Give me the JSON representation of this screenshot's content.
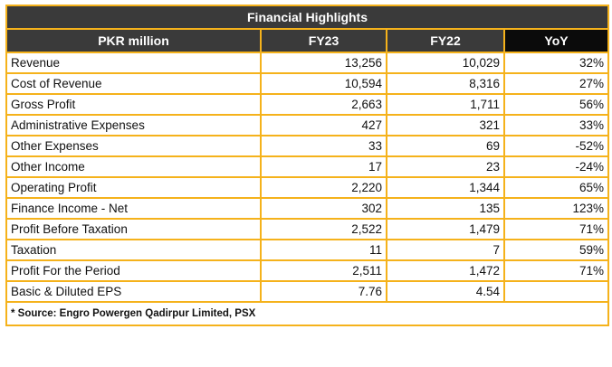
{
  "table": {
    "title": "Financial Highlights",
    "headers": [
      "PKR million",
      "FY23",
      "FY22",
      "YoY"
    ],
    "rows": [
      {
        "label": "Revenue",
        "fy23": "13,256",
        "fy22": "10,029",
        "yoy": "32%"
      },
      {
        "label": "Cost of Revenue",
        "fy23": "10,594",
        "fy22": "8,316",
        "yoy": "27%"
      },
      {
        "label": "Gross Profit",
        "fy23": "2,663",
        "fy22": "1,711",
        "yoy": "56%"
      },
      {
        "label": "Administrative Expenses",
        "fy23": "427",
        "fy22": "321",
        "yoy": "33%"
      },
      {
        "label": "Other Expenses",
        "fy23": "33",
        "fy22": "69",
        "yoy": "-52%"
      },
      {
        "label": "Other Income",
        "fy23": "17",
        "fy22": "23",
        "yoy": "-24%"
      },
      {
        "label": "Operating Profit",
        "fy23": "2,220",
        "fy22": "1,344",
        "yoy": "65%"
      },
      {
        "label": "Finance Income - Net",
        "fy23": "302",
        "fy22": "135",
        "yoy": "123%"
      },
      {
        "label": "Profit Before Taxation",
        "fy23": "2,522",
        "fy22": "1,479",
        "yoy": "71%"
      },
      {
        "label": "Taxation",
        "fy23": "11",
        "fy22": "7",
        "yoy": "59%"
      },
      {
        "label": "Profit For the Period",
        "fy23": "2,511",
        "fy22": "1,472",
        "yoy": "71%"
      },
      {
        "label": "Basic & Diluted EPS",
        "fy23": "7.76",
        "fy22": "4.54",
        "yoy": ""
      }
    ],
    "source": "* Source: Engro Powergen Qadirpur Limited, PSX"
  },
  "colors": {
    "border": "#f5b21b",
    "header_bg": "#3a3a3a",
    "yoy_header_bg": "#0b0b0b"
  }
}
